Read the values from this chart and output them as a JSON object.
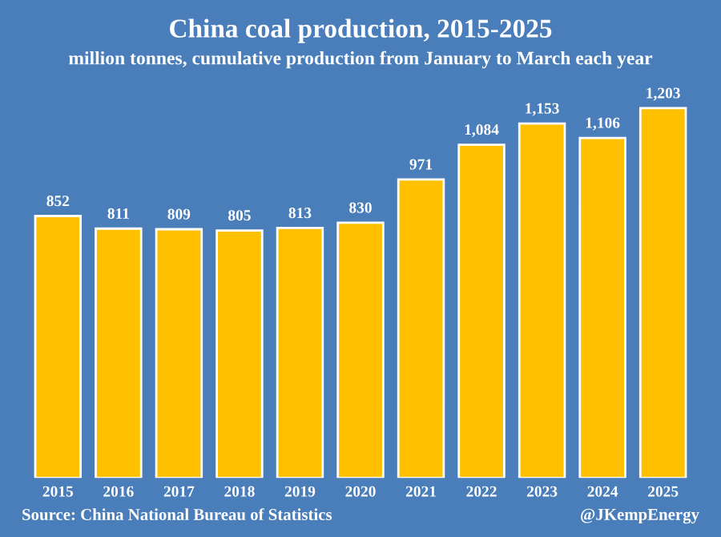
{
  "chart_data": {
    "type": "bar",
    "title": "China coal production, 2015-2025",
    "subtitle": "million tonnes, cumulative production from January to March each year",
    "categories": [
      "2015",
      "2016",
      "2017",
      "2018",
      "2019",
      "2020",
      "2021",
      "2022",
      "2023",
      "2024",
      "2025"
    ],
    "values": [
      852,
      811,
      809,
      805,
      813,
      830,
      971,
      1084,
      1153,
      1106,
      1203
    ],
    "value_labels": [
      "852",
      "811",
      "809",
      "805",
      "813",
      "830",
      "971",
      "1,084",
      "1,153",
      "1,106",
      "1,203"
    ],
    "color": "#ffc000",
    "grid": false,
    "legend": false,
    "annotations": [
      "Source: China National Bureau of Statistics",
      "@JKempEnergy"
    ]
  }
}
